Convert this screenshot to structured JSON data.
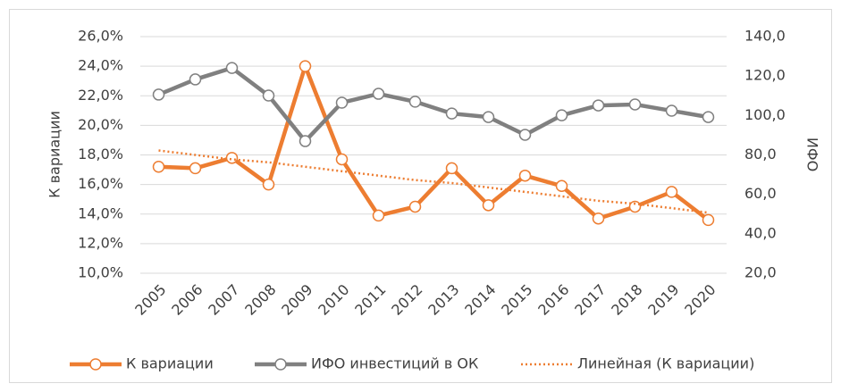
{
  "chart_data": {
    "type": "line",
    "y_label": "К вариации",
    "y2_label": "ИФО",
    "categories": [
      "2005",
      "2006",
      "2007",
      "2008",
      "2009",
      "2010",
      "2011",
      "2012",
      "2013",
      "2014",
      "2015",
      "2016",
      "2017",
      "2018",
      "2019",
      "2020"
    ],
    "series": [
      {
        "name": "К вариации",
        "color": "#ed7d31",
        "marker": "circle",
        "line_style": "solid",
        "values": [
          17.2,
          17.1,
          17.8,
          16.0,
          24.0,
          17.7,
          13.9,
          14.5,
          17.1,
          14.6,
          16.6,
          15.9,
          13.7,
          14.5,
          15.5,
          13.6
        ]
      },
      {
        "name": "ИФО инвестиций в ОК",
        "color": "#808080",
        "marker": "circle",
        "line_style": "solid",
        "axis": "y2",
        "values": [
          110.6,
          118.3,
          124.1,
          110.1,
          87.0,
          106.5,
          111.0,
          107.0,
          101.0,
          99.2,
          90.2,
          100.1,
          105.1,
          105.6,
          102.4,
          99.2
        ]
      },
      {
        "name": "Линейная (К вариации)",
        "color": "#ed7d31",
        "marker": "none",
        "line_style": "dotted",
        "values": [
          18.3,
          18.0,
          17.7,
          17.5,
          17.2,
          16.9,
          16.6,
          16.3,
          16.1,
          15.8,
          15.5,
          15.2,
          14.9,
          14.7,
          14.4,
          14.1
        ]
      }
    ],
    "ylim": [
      10,
      26
    ],
    "yticks": [
      {
        "value": 10,
        "label": "10,0%"
      },
      {
        "value": 12,
        "label": "12,0%"
      },
      {
        "value": 14,
        "label": "14,0%"
      },
      {
        "value": 16,
        "label": "16,0%"
      },
      {
        "value": 18,
        "label": "18,0%"
      },
      {
        "value": 20,
        "label": "20,0%"
      },
      {
        "value": 22,
        "label": "22,0%"
      },
      {
        "value": 24,
        "label": "24,0%"
      },
      {
        "value": 26,
        "label": "26,0%"
      }
    ],
    "y2lim": [
      20,
      140
    ],
    "y2ticks": [
      {
        "value": 20,
        "label": "20,0"
      },
      {
        "value": 40,
        "label": "40,0"
      },
      {
        "value": 60,
        "label": "60,0"
      },
      {
        "value": 80,
        "label": "80,0"
      },
      {
        "value": 100,
        "label": "100,0"
      },
      {
        "value": 120,
        "label": "120,0"
      },
      {
        "value": 140,
        "label": "140,0"
      }
    ],
    "grid": true,
    "legend": "bottom"
  }
}
